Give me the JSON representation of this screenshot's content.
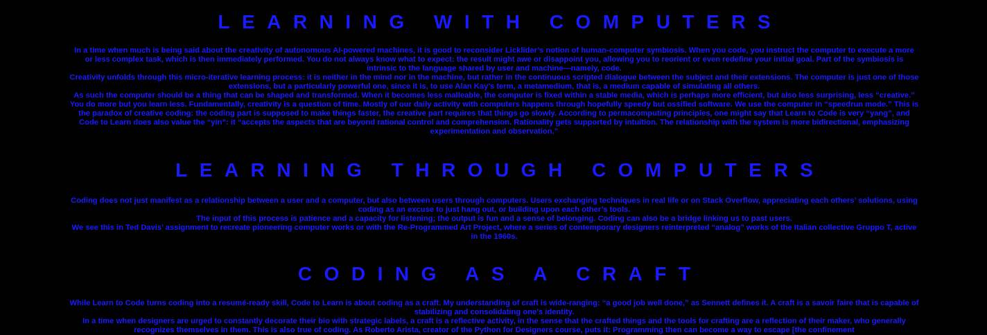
{
  "sections": [
    {
      "heading": "LEARNING WITH COMPUTERS",
      "paragraphs": [
        "In a time when much is being said about the creativity of autonomous AI-powered machines, it is good to reconsider Licklider’s notion of human-computer symbiosis. When you code, you instruct the computer to execute a more or less complex task, which is then immediately performed. You do not always know what to expect: the result might awe or disappoint you, allowing you to reorient or even redefine your initial goal. Part of the symbiosis is intrinsic to the language shared by user and machine—namely, code.",
        "Creativity unfolds through this micro-iterative learning process: it is neither in the mind nor in the machine, but rather in the continuous scripted dialogue between the subject and their extensions. The computer is just one of those extensions, but a particularly powerful one, since it is, to use Alan Kay’s term, a metamedium, that is, a medium capable of simulating all others.",
        "As such the computer should be a thing that can be shaped and transformed. When it becomes less malleable, the computer is fixed within a stable media, which is perhaps more efficient, but also less surprising, less “creative.” You do more but you learn less. Fundamentally, creativity is a question of time. Mostly of our daily activity with computers happens through hopefully speedy but ossified software. We use the computer in “speedrun mode.” This is the paradox of creative coding: the coding part is supposed to make things faster, the creative part requires that things go slowly. According to permacomputing principles, one might say that Learn to Code is very “yang”, and Code to Learn does also value the “yin”: it “accepts the aspects that are beyond rational control and comprehension. Rationality gets supported by intuition. The relationship with the system is more bidirectional, emphasizing experimentation and observation.”"
      ]
    },
    {
      "heading": "LEARNING THROUGH COMPUTERS",
      "paragraphs": [
        "Coding does not just manifest as a relationship between a user and a computer, but also between users through computers. Users exchanging techniques in real life or on Stack Overflow, appreciating each others’ solutions, using coding as an excuse to just hang out, or building upon each other’s tools.",
        "The input of this process is patience and a capacity for listening; the output is fun and a sense of belonging. Coding can also be a bridge linking us to past users.",
        "We see this in Ted Davis’ assignment to recreate pioneering computer works or with the Re-Programmed Art Project, where a series of contemporary designers reinterpreted “analog” works of the Italian collective Gruppo T, active in the 1960s."
      ]
    },
    {
      "heading": "CODING AS A CRAFT",
      "paragraphs": [
        "While Learn to Code turns coding into a resumé-ready skill, Code to Learn is about coding as a craft. My understanding of craft is wide-ranging: “a good job well done,” as Sennett defines it. A craft is a savoir faire that is capable of stabilizing and consolidating one’s identity.",
        "In a time when designers are urged to constantly decorate their bio with strategic labels, a craft is a reflective activity, in the sense that the crafted things and the tools for crafting are a reflection of their maker, who generally recognizes themselves in them. This is also true of coding. As Roberto Arista, creator of the Python for Designers course, puts it: Programming then can become a way to escape [the confinement"
      ]
    }
  ]
}
